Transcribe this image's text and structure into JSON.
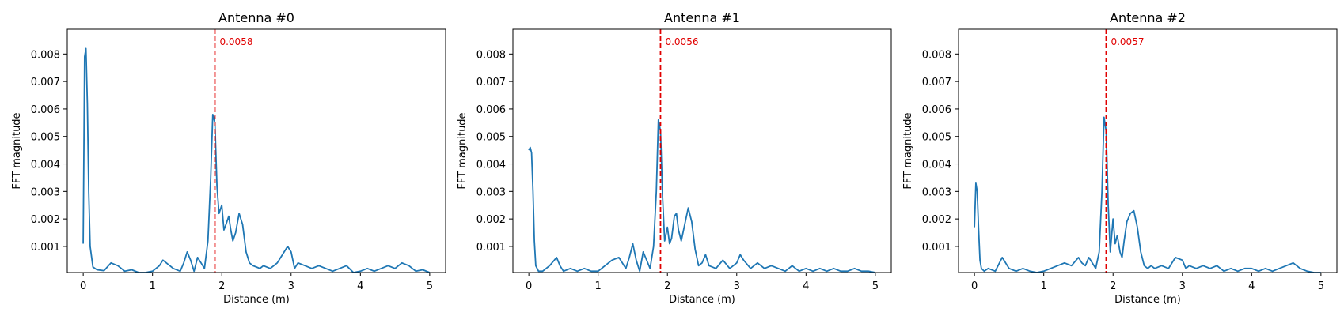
{
  "figure": {
    "layout": "1x3"
  },
  "chart_data": [
    {
      "type": "line",
      "title": "Antenna #0",
      "xlabel": "Distance (m)",
      "ylabel": "FFT magnitude",
      "xlim": [
        -0.23,
        5.23
      ],
      "ylim": [
        5e-05,
        0.0089
      ],
      "xticks": [
        0,
        1,
        2,
        3,
        4,
        5
      ],
      "yticks": [
        0.001,
        0.002,
        0.003,
        0.004,
        0.005,
        0.006,
        0.007,
        0.008
      ],
      "ytick_labels": [
        "0.001",
        "0.002",
        "0.003",
        "0.004",
        "0.005",
        "0.006",
        "0.007",
        "0.008"
      ],
      "grid": false,
      "line_color": "#1f77b4",
      "marker_color": "#e00000",
      "marker_x": 1.9,
      "marker_label": "0.0058",
      "series": [
        {
          "x": [
            0.0,
            0.02,
            0.04,
            0.06,
            0.08,
            0.1,
            0.14,
            0.2,
            0.3,
            0.4,
            0.5,
            0.6,
            0.7,
            0.8,
            0.9,
            1.0,
            1.1,
            1.15,
            1.2,
            1.3,
            1.4,
            1.45,
            1.5,
            1.55,
            1.6,
            1.65,
            1.7,
            1.75,
            1.8,
            1.84,
            1.87,
            1.9,
            1.93,
            1.96,
            2.0,
            2.03,
            2.06,
            2.1,
            2.13,
            2.16,
            2.2,
            2.25,
            2.3,
            2.35,
            2.4,
            2.45,
            2.5,
            2.55,
            2.6,
            2.7,
            2.8,
            2.9,
            2.95,
            3.0,
            3.05,
            3.1,
            3.2,
            3.3,
            3.4,
            3.5,
            3.6,
            3.7,
            3.8,
            3.9,
            4.0,
            4.1,
            4.2,
            4.3,
            4.4,
            4.5,
            4.6,
            4.7,
            4.8,
            4.9,
            5.0
          ],
          "y": [
            0.0011,
            0.0079,
            0.0082,
            0.0062,
            0.003,
            0.001,
            0.00025,
            0.00015,
            0.00012,
            0.0004,
            0.0003,
            0.0001,
            0.00015,
            5e-05,
            5e-05,
            0.0001,
            0.0003,
            0.0005,
            0.0004,
            0.0002,
            0.0001,
            0.0004,
            0.0008,
            0.0005,
            0.0001,
            0.0006,
            0.0004,
            0.0002,
            0.0012,
            0.0035,
            0.0058,
            0.0055,
            0.0032,
            0.0022,
            0.0025,
            0.0016,
            0.0018,
            0.0021,
            0.0016,
            0.0012,
            0.0015,
            0.0022,
            0.0018,
            0.0008,
            0.0004,
            0.0003,
            0.00025,
            0.0002,
            0.0003,
            0.0002,
            0.0004,
            0.0008,
            0.001,
            0.0008,
            0.0002,
            0.0004,
            0.0003,
            0.0002,
            0.0003,
            0.0002,
            0.0001,
            0.0002,
            0.0003,
            5e-05,
            0.0001,
            0.0002,
            0.0001,
            0.0002,
            0.0003,
            0.0002,
            0.0004,
            0.0003,
            0.0001,
            0.00015,
            5e-05
          ]
        }
      ]
    },
    {
      "type": "line",
      "title": "Antenna #1",
      "xlabel": "Distance (m)",
      "ylabel": "FFT magnitude",
      "xlim": [
        -0.23,
        5.23
      ],
      "ylim": [
        5e-05,
        0.0089
      ],
      "xticks": [
        0,
        1,
        2,
        3,
        4,
        5
      ],
      "yticks": [
        0.001,
        0.002,
        0.003,
        0.004,
        0.005,
        0.006,
        0.007,
        0.008
      ],
      "ytick_labels": [
        "0.001",
        "0.002",
        "0.003",
        "0.004",
        "0.005",
        "0.006",
        "0.007",
        "0.008"
      ],
      "grid": false,
      "line_color": "#1f77b4",
      "marker_color": "#e00000",
      "marker_x": 1.9,
      "marker_label": "0.0056",
      "series": [
        {
          "x": [
            0.0,
            0.02,
            0.04,
            0.06,
            0.08,
            0.1,
            0.14,
            0.2,
            0.3,
            0.4,
            0.45,
            0.5,
            0.6,
            0.7,
            0.8,
            0.9,
            1.0,
            1.1,
            1.2,
            1.3,
            1.4,
            1.45,
            1.5,
            1.55,
            1.6,
            1.65,
            1.7,
            1.75,
            1.8,
            1.84,
            1.87,
            1.9,
            1.93,
            1.96,
            2.0,
            2.03,
            2.06,
            2.1,
            2.13,
            2.16,
            2.2,
            2.25,
            2.3,
            2.35,
            2.4,
            2.45,
            2.5,
            2.55,
            2.6,
            2.7,
            2.8,
            2.9,
            3.0,
            3.05,
            3.1,
            3.2,
            3.3,
            3.4,
            3.5,
            3.6,
            3.7,
            3.8,
            3.9,
            4.0,
            4.1,
            4.2,
            4.3,
            4.4,
            4.5,
            4.6,
            4.7,
            4.8,
            4.9,
            5.0
          ],
          "y": [
            0.0045,
            0.0046,
            0.0044,
            0.003,
            0.0012,
            0.0003,
            0.0001,
            0.0001,
            0.0003,
            0.0006,
            0.0003,
            0.0001,
            0.0002,
            0.0001,
            0.0002,
            0.0001,
            0.0001,
            0.0003,
            0.0005,
            0.0006,
            0.0002,
            0.0006,
            0.0011,
            0.0005,
            0.0001,
            0.0008,
            0.0005,
            0.0002,
            0.001,
            0.003,
            0.0056,
            0.0052,
            0.0028,
            0.0012,
            0.0017,
            0.0011,
            0.0013,
            0.0021,
            0.0022,
            0.0016,
            0.0012,
            0.0018,
            0.0024,
            0.0019,
            0.0009,
            0.0003,
            0.0004,
            0.0007,
            0.0003,
            0.0002,
            0.0005,
            0.0002,
            0.0004,
            0.0007,
            0.0005,
            0.0002,
            0.0004,
            0.0002,
            0.0003,
            0.0002,
            0.0001,
            0.0003,
            0.0001,
            0.0002,
            0.0001,
            0.0002,
            0.0001,
            0.0002,
            0.0001,
            0.0001,
            0.0002,
            0.0001,
            0.0001,
            5e-05
          ]
        }
      ]
    },
    {
      "type": "line",
      "title": "Antenna #2",
      "xlabel": "Distance (m)",
      "ylabel": "FFT magnitude",
      "xlim": [
        -0.23,
        5.23
      ],
      "ylim": [
        5e-05,
        0.0089
      ],
      "xticks": [
        0,
        1,
        2,
        3,
        4,
        5
      ],
      "yticks": [
        0.001,
        0.002,
        0.003,
        0.004,
        0.005,
        0.006,
        0.007,
        0.008
      ],
      "ytick_labels": [
        "0.001",
        "0.002",
        "0.003",
        "0.004",
        "0.005",
        "0.006",
        "0.007",
        "0.008"
      ],
      "grid": false,
      "line_color": "#1f77b4",
      "marker_color": "#e00000",
      "marker_x": 1.9,
      "marker_label": "0.0057",
      "series": [
        {
          "x": [
            0.0,
            0.02,
            0.04,
            0.06,
            0.08,
            0.1,
            0.14,
            0.2,
            0.3,
            0.4,
            0.45,
            0.5,
            0.6,
            0.7,
            0.8,
            0.9,
            1.0,
            1.1,
            1.2,
            1.3,
            1.4,
            1.5,
            1.55,
            1.6,
            1.65,
            1.7,
            1.75,
            1.8,
            1.84,
            1.87,
            1.9,
            1.93,
            1.96,
            2.0,
            2.03,
            2.06,
            2.1,
            2.13,
            2.16,
            2.2,
            2.25,
            2.3,
            2.35,
            2.4,
            2.45,
            2.5,
            2.55,
            2.6,
            2.7,
            2.8,
            2.9,
            3.0,
            3.05,
            3.1,
            3.2,
            3.3,
            3.4,
            3.5,
            3.6,
            3.7,
            3.8,
            3.9,
            4.0,
            4.1,
            4.2,
            4.3,
            4.4,
            4.5,
            4.6,
            4.7,
            4.8,
            4.9,
            5.0
          ],
          "y": [
            0.0017,
            0.0033,
            0.003,
            0.0016,
            0.0005,
            0.0002,
            0.0001,
            0.0002,
            0.0001,
            0.0006,
            0.0004,
            0.0002,
            0.0001,
            0.0002,
            0.0001,
            5e-05,
            0.0001,
            0.0002,
            0.0003,
            0.0004,
            0.0003,
            0.0006,
            0.0004,
            0.0003,
            0.0006,
            0.0004,
            0.0002,
            0.0008,
            0.003,
            0.0057,
            0.0052,
            0.0025,
            0.0008,
            0.002,
            0.0011,
            0.0014,
            0.0008,
            0.0006,
            0.0012,
            0.0019,
            0.0022,
            0.0023,
            0.0017,
            0.0008,
            0.0003,
            0.0002,
            0.0003,
            0.0002,
            0.0003,
            0.0002,
            0.0006,
            0.0005,
            0.0002,
            0.0003,
            0.0002,
            0.0003,
            0.0002,
            0.0003,
            0.0001,
            0.0002,
            0.0001,
            0.0002,
            0.0002,
            0.0001,
            0.0002,
            0.0001,
            0.0002,
            0.0003,
            0.0004,
            0.0002,
            0.0001,
            5e-05,
            5e-05
          ]
        }
      ]
    }
  ]
}
